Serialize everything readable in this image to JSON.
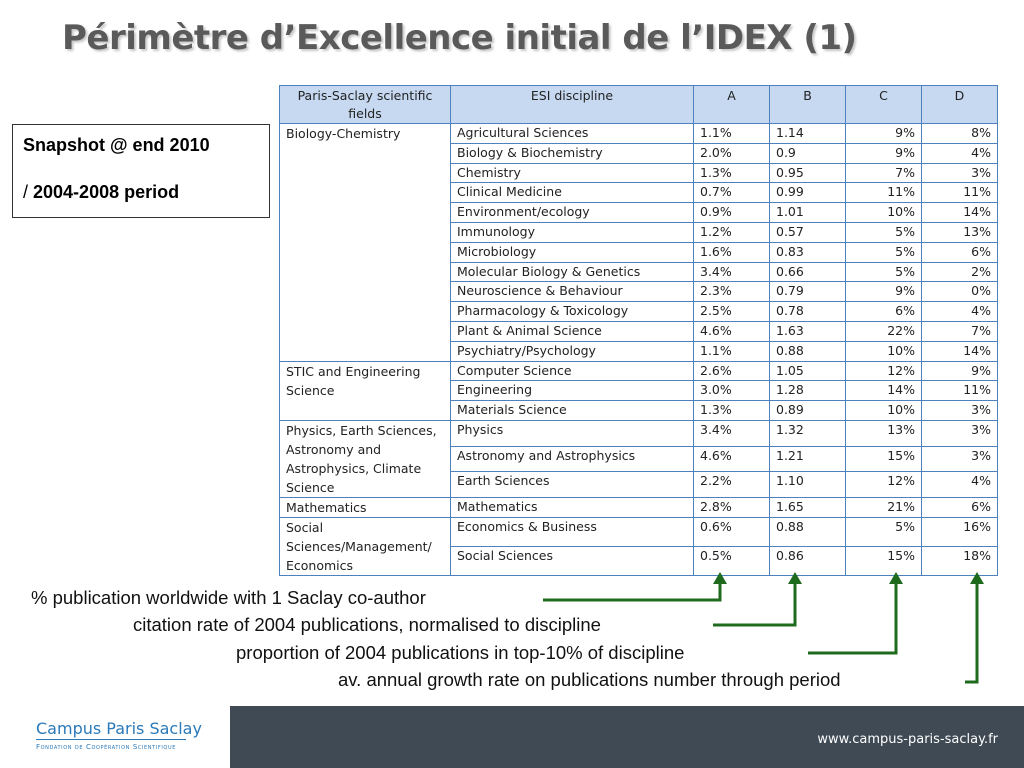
{
  "title": "Périmètre d’Excellence initial de l’IDEX (1)",
  "snapshot": {
    "line1": "Snapshot @ end 2010",
    "line2_slash": "/",
    "line2_text": " 2004-2008 period"
  },
  "table": {
    "headers": [
      "Paris-Saclay scientific fields",
      "ESI discipline",
      "A",
      "B",
      "C",
      "D"
    ],
    "groups": [
      {
        "field": "Biology-Chemistry",
        "rows": [
          [
            "Agricultural Sciences",
            "1.1%",
            "1.14",
            "9%",
            "8%"
          ],
          [
            "Biology & Biochemistry",
            "2.0%",
            "0.9",
            "9%",
            "4%"
          ],
          [
            "Chemistry",
            "1.3%",
            "0.95",
            "7%",
            "3%"
          ],
          [
            "Clinical Medicine",
            "0.7%",
            "0.99",
            "11%",
            "11%"
          ],
          [
            "Environment/ecology",
            "0.9%",
            "1.01",
            "10%",
            "14%"
          ],
          [
            "Immunology",
            "1.2%",
            "0.57",
            "5%",
            "13%"
          ],
          [
            "Microbiology",
            "1.6%",
            "0.83",
            "5%",
            "6%"
          ],
          [
            "Molecular Biology & Genetics",
            "3.4%",
            "0.66",
            "5%",
            "2%"
          ],
          [
            "Neuroscience & Behaviour",
            "2.3%",
            "0.79",
            "9%",
            "0%"
          ],
          [
            "Pharmacology & Toxicology",
            "2.5%",
            "0.78",
            "6%",
            "4%"
          ],
          [
            "Plant & Animal Science",
            "4.6%",
            "1.63",
            "22%",
            "7%"
          ],
          [
            "Psychiatry/Psychology",
            "1.1%",
            "0.88",
            "10%",
            "14%"
          ]
        ]
      },
      {
        "field": "STIC and Engineering Science",
        "rows": [
          [
            "Computer Science",
            "2.6%",
            "1.05",
            "12%",
            "9%"
          ],
          [
            "Engineering",
            "3.0%",
            "1.28",
            "14%",
            "11%"
          ],
          [
            "Materials Science",
            "1.3%",
            "0.89",
            "10%",
            "3%"
          ]
        ]
      },
      {
        "field": "Physics, Earth Sciences, Astronomy and Astrophysics, Climate Science",
        "rows": [
          [
            "Physics",
            "3.4%",
            "1.32",
            "13%",
            "3%"
          ],
          [
            "Astronomy and Astrophysics",
            "4.6%",
            "1.21",
            "15%",
            "3%"
          ],
          [
            "Earth Sciences",
            "2.2%",
            "1.10",
            "12%",
            "4%"
          ]
        ]
      },
      {
        "field": "Mathematics",
        "rows": [
          [
            "Mathematics",
            "2.8%",
            "1.65",
            "21%",
            "6%"
          ]
        ]
      },
      {
        "field": "Social Sciences/Management/ Economics",
        "rows": [
          [
            "Economics & Business",
            "0.6%",
            "0.88",
            "5%",
            "16%"
          ],
          [
            "Social Sciences",
            "0.5%",
            "0.86",
            "15%",
            "18%"
          ]
        ]
      }
    ]
  },
  "legend": {
    "a": "% publication worldwide with 1 Saclay co-author",
    "b": "citation rate of 2004 publications, normalised to discipline",
    "c": "proportion  of 2004 publications in top-10% of discipline",
    "d": "av. annual growth rate on publications number through period"
  },
  "colors": {
    "arrow": "#1e6b1e",
    "table_border": "#4f81bd",
    "header_fill": "#c6d9f1",
    "footer": "#3f4a55",
    "logo": "#2a79b8"
  },
  "footer": {
    "logo_name": "Campus Paris Saclay",
    "logo_sub": "Fondation de Coopération Scientifique",
    "url": "www.campus-paris-saclay.fr"
  }
}
